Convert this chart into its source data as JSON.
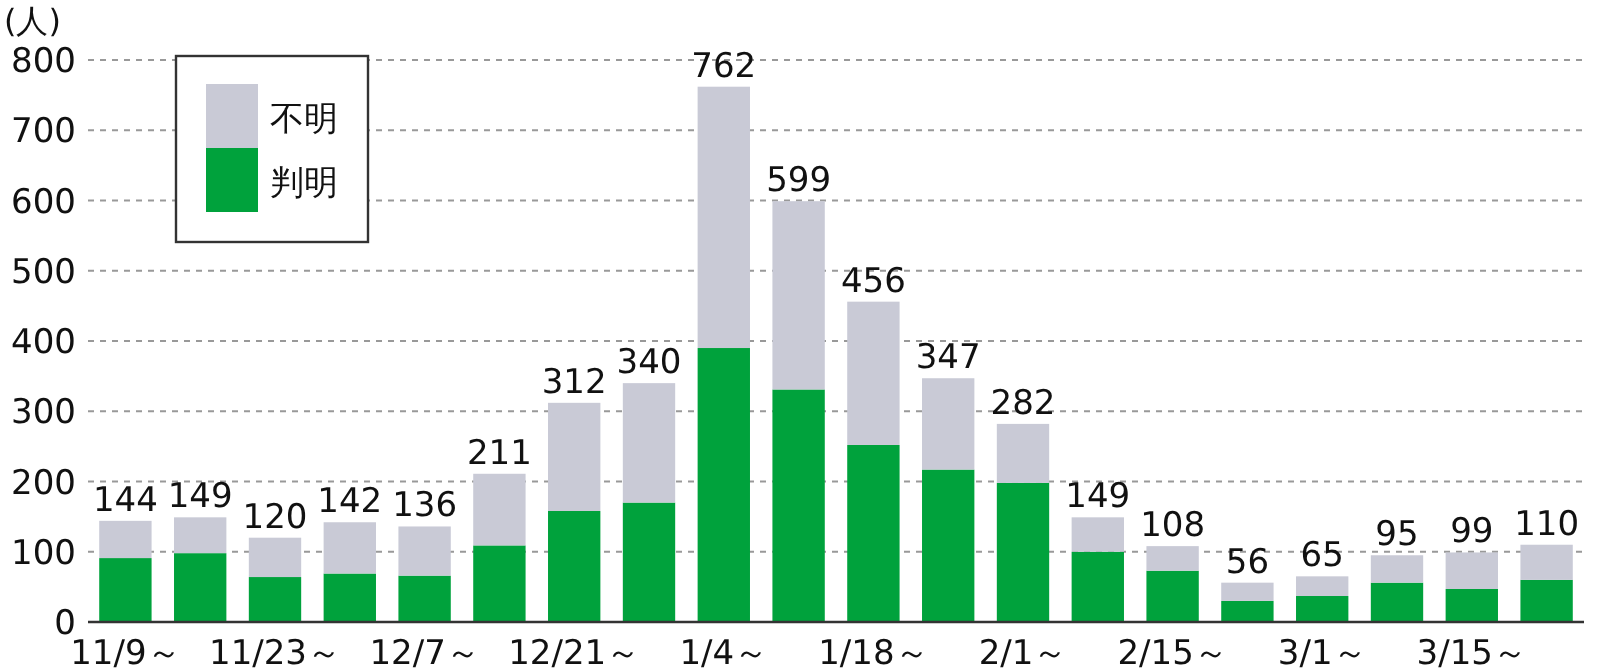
{
  "chart_data": {
    "type": "bar",
    "stacked": true,
    "ylabel": "(人)",
    "categories": [
      "11/9～",
      null,
      "11/23～",
      null,
      "12/7～",
      null,
      "12/21～",
      null,
      "1/4～",
      null,
      "1/18～",
      null,
      "2/1～",
      null,
      "2/15～",
      null,
      "3/1～",
      null,
      "3/15～",
      null
    ],
    "series": [
      {
        "name": "判明",
        "color": "#00a23c",
        "values": [
          91,
          98,
          64,
          69,
          66,
          109,
          158,
          170,
          390,
          331,
          252,
          217,
          198,
          100,
          73,
          30,
          37,
          56,
          47,
          60
        ]
      },
      {
        "name": "不明",
        "color": "#c9cad6",
        "values": [
          53,
          51,
          56,
          73,
          70,
          102,
          154,
          170,
          372,
          268,
          204,
          130,
          84,
          49,
          35,
          26,
          28,
          39,
          52,
          50
        ]
      }
    ],
    "totals": [
      "144",
      "149",
      "120",
      "142",
      "136",
      "211",
      "312",
      "340",
      "762",
      "599",
      "456",
      "347",
      "282",
      "149",
      "108",
      "56",
      "65",
      "95",
      "99",
      "110"
    ],
    "ylim": [
      0,
      800
    ],
    "yticks": [
      0,
      100,
      200,
      300,
      400,
      500,
      600,
      700,
      800
    ],
    "grid": "y",
    "legend": "top left"
  }
}
